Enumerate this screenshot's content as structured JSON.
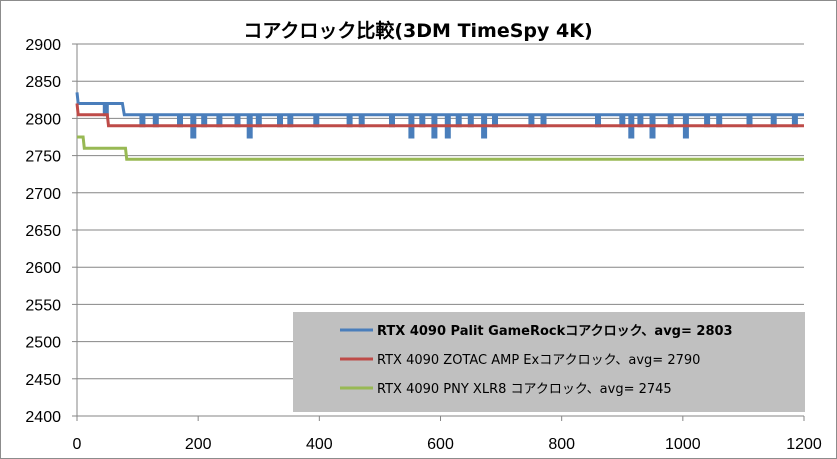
{
  "chart_data": {
    "type": "line",
    "title": "コアクロック比較(3DM TimeSpy 4K)",
    "xlabel": "",
    "ylabel": "",
    "xlim": [
      0,
      1200
    ],
    "ylim": [
      2400,
      2900
    ],
    "x_ticks": [
      0,
      200,
      400,
      600,
      800,
      1000,
      1200
    ],
    "y_ticks": [
      2400,
      2450,
      2500,
      2550,
      2600,
      2650,
      2700,
      2750,
      2800,
      2850,
      2900
    ],
    "grid": "horizontal",
    "legend_position": "bottom-right",
    "legend_background": "#c0c0c0",
    "series": [
      {
        "name": "RTX 4090 Palit GameRockコアクロック、avg= 2803",
        "color": "#4a7ebb",
        "bold": true,
        "points": [
          [
            0,
            2835
          ],
          [
            2,
            2820
          ],
          [
            45,
            2820
          ],
          [
            45,
            2805
          ],
          [
            50,
            2805
          ],
          [
            50,
            2820
          ],
          [
            75,
            2820
          ],
          [
            78,
            2805
          ],
          [
            1200,
            2805
          ]
        ],
        "dips": [
          [
            108,
            2790
          ],
          [
            130,
            2790
          ],
          [
            170,
            2790
          ],
          [
            192,
            2775
          ],
          [
            210,
            2790
          ],
          [
            235,
            2790
          ],
          [
            265,
            2790
          ],
          [
            285,
            2775
          ],
          [
            300,
            2790
          ],
          [
            335,
            2790
          ],
          [
            352,
            2790
          ],
          [
            395,
            2790
          ],
          [
            450,
            2790
          ],
          [
            470,
            2790
          ],
          [
            520,
            2790
          ],
          [
            552,
            2775
          ],
          [
            570,
            2790
          ],
          [
            590,
            2775
          ],
          [
            612,
            2775
          ],
          [
            630,
            2790
          ],
          [
            650,
            2790
          ],
          [
            672,
            2775
          ],
          [
            690,
            2790
          ],
          [
            750,
            2790
          ],
          [
            770,
            2790
          ],
          [
            860,
            2790
          ],
          [
            900,
            2790
          ],
          [
            915,
            2775
          ],
          [
            930,
            2790
          ],
          [
            950,
            2775
          ],
          [
            980,
            2790
          ],
          [
            1005,
            2775
          ],
          [
            1040,
            2790
          ],
          [
            1060,
            2790
          ],
          [
            1110,
            2790
          ],
          [
            1150,
            2790
          ],
          [
            1185,
            2790
          ]
        ]
      },
      {
        "name": "RTX 4090 ZOTAC AMP Exコアクロック、avg= 2790",
        "color": "#be4b48",
        "bold": false,
        "points": [
          [
            0,
            2820
          ],
          [
            2,
            2805
          ],
          [
            50,
            2805
          ],
          [
            52,
            2790
          ],
          [
            1200,
            2790
          ]
        ],
        "dips": []
      },
      {
        "name": "RTX 4090 PNY XLR8 コアクロック、avg= 2745",
        "color": "#98b954",
        "bold": false,
        "points": [
          [
            0,
            2775
          ],
          [
            10,
            2775
          ],
          [
            12,
            2760
          ],
          [
            80,
            2760
          ],
          [
            82,
            2745
          ],
          [
            1200,
            2745
          ]
        ],
        "dips": []
      }
    ]
  }
}
